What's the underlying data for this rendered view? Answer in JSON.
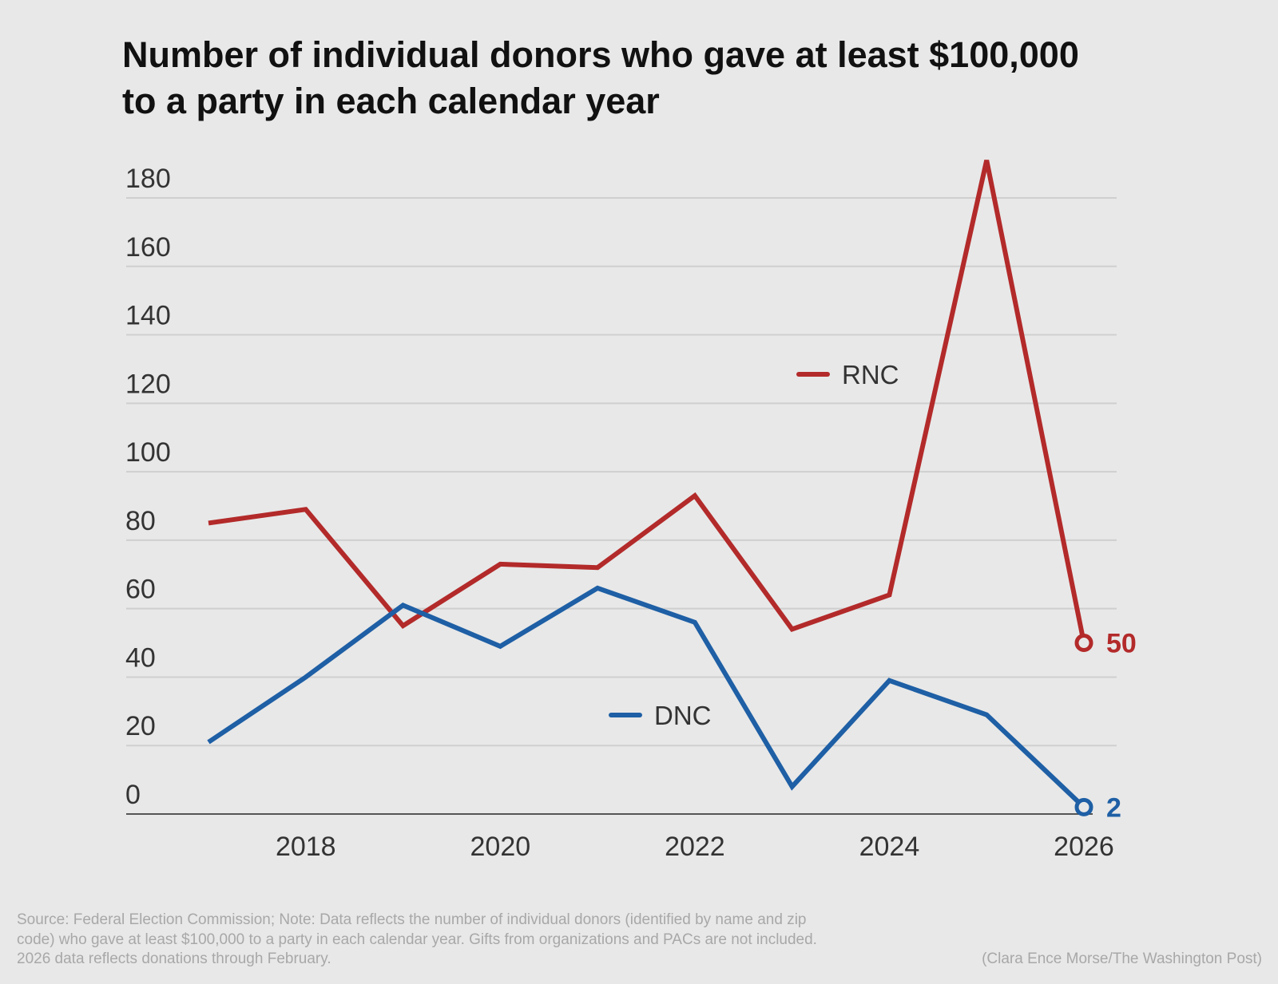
{
  "chart_data": {
    "type": "line",
    "title": "Number of individual donors who gave at least $100,000 to a party in each calendar year",
    "xlabel": "",
    "ylabel": "",
    "x": [
      2017,
      2018,
      2019,
      2020,
      2021,
      2022,
      2023,
      2024,
      2025,
      2026
    ],
    "xlim": [
      2017,
      2026
    ],
    "ylim": [
      0,
      180
    ],
    "x_ticks": [
      "2018",
      "2020",
      "2022",
      "2024",
      "2026"
    ],
    "y_ticks": [
      "0",
      "20",
      "40",
      "60",
      "80",
      "100",
      "120",
      "140",
      "160",
      "180"
    ],
    "grid": true,
    "series": [
      {
        "name": "RNC",
        "color": "#b32a2a",
        "values": [
          85,
          89,
          55,
          73,
          72,
          93,
          54,
          64,
          191,
          50
        ],
        "end_label": "50"
      },
      {
        "name": "DNC",
        "color": "#1e5fa5",
        "values": [
          21,
          40,
          61,
          49,
          66,
          56,
          8,
          39,
          29,
          2
        ],
        "end_label": "2"
      }
    ],
    "legend": "inline"
  },
  "footer": {
    "note": "Source: Federal Election Commission; Note: Data reflects the number of individual donors (identified by name and zip code) who gave at least $100,000 to a party in each calendar year. Gifts from organizations and PACs are not included. 2026 data reflects donations through February.",
    "credit": "(Clara Ence Morse/The Washington Post)"
  }
}
